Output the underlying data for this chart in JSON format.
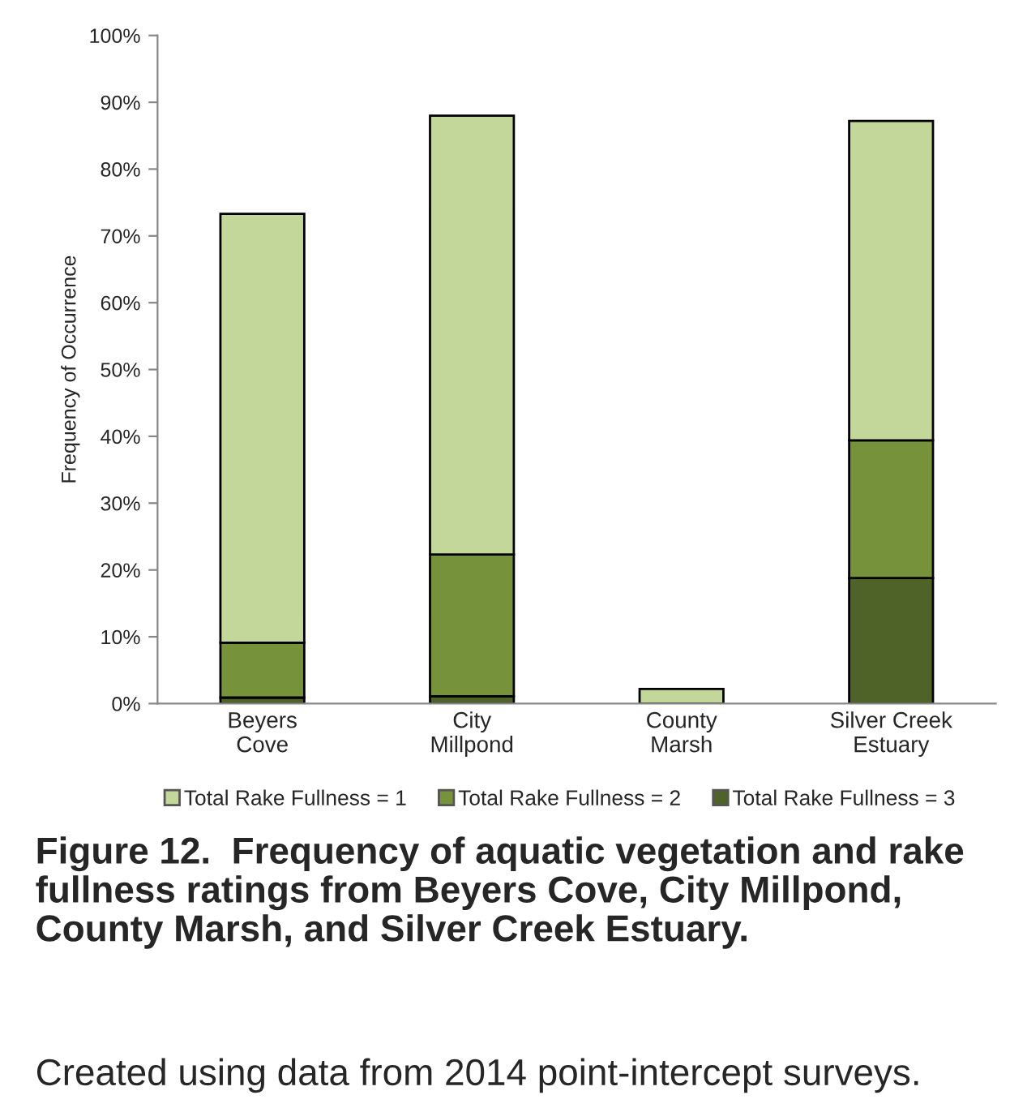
{
  "chart_data": {
    "type": "bar",
    "stacked": true,
    "title": "Figure 12.  Frequency of aquatic vegetation and rake fullness ratings from Beyers Cove, City Millpond, County Marsh, and Silver Creek Estuary.",
    "annotations": [
      "Created using data from 2014 point-intercept surveys."
    ],
    "ylabel": "Frequency of Occurrence",
    "categories": [
      "Beyers\nCove",
      "City\nMillpond",
      "County\nMarsh",
      "Silver Creek\nEstuary"
    ],
    "series": [
      {
        "name": "Total Rake Fullness = 3",
        "color": "#4f6228",
        "values": [
          0.9,
          1.1,
          0,
          18.8
        ]
      },
      {
        "name": "Total Rake Fullness = 2",
        "color": "#76933c",
        "values": [
          8.2,
          21.2,
          0,
          20.6
        ]
      },
      {
        "name": "Total Rake Fullness = 1",
        "color": "#c4d79b",
        "values": [
          64.2,
          65.7,
          2.2,
          47.8
        ]
      }
    ],
    "ylim": [
      0,
      100
    ],
    "yticks": [
      {
        "value": 0,
        "label": "0%"
      },
      {
        "value": 10,
        "label": "10%"
      },
      {
        "value": 20,
        "label": "20%"
      },
      {
        "value": 30,
        "label": "30%"
      },
      {
        "value": 40,
        "label": "40%"
      },
      {
        "value": 50,
        "label": "50%"
      },
      {
        "value": 60,
        "label": "60%"
      },
      {
        "value": 70,
        "label": "70%"
      },
      {
        "value": 80,
        "label": "80%"
      },
      {
        "value": 90,
        "label": "90%"
      },
      {
        "value": 100,
        "label": "100%"
      }
    ],
    "grid": false,
    "legend": "bottom"
  }
}
